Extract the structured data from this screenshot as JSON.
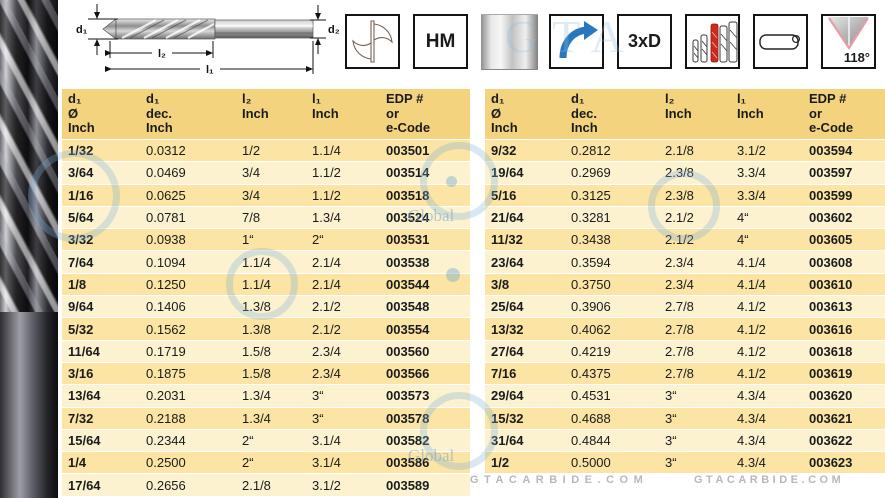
{
  "diagram": {
    "d1": "d₁",
    "d2": "d₂",
    "l2": "l₂",
    "l1": "l₁"
  },
  "icons": {
    "hm_label": "HM",
    "ratio_label": "3xD",
    "angle_label": "118°"
  },
  "table": {
    "headers": [
      "d₁\nØ\nInch",
      "d₁\ndec.\nInch",
      "l₂\nInch",
      "l₁\nInch",
      "EDP #\nor\ne-Code"
    ],
    "left_rows": [
      [
        "1/32",
        "0.0312",
        "1/2",
        "1.1/4",
        "003501"
      ],
      [
        "3/64",
        "0.0469",
        "3/4",
        "1.1/2",
        "003514"
      ],
      [
        "1/16",
        "0.0625",
        "3/4",
        "1.1/2",
        "003518"
      ],
      [
        "5/64",
        "0.0781",
        "7/8",
        "1.3/4",
        "003524"
      ],
      [
        "3/32",
        "0.0938",
        "1“",
        "2“",
        "003531"
      ],
      [
        "7/64",
        "0.1094",
        "1.1/4",
        "2.1/4",
        "003538"
      ],
      [
        "1/8",
        "0.1250",
        "1.1/4",
        "2.1/4",
        "003544"
      ],
      [
        "9/64",
        "0.1406",
        "1.3/8",
        "2.1/2",
        "003548"
      ],
      [
        "5/32",
        "0.1562",
        "1.3/8",
        "2.1/2",
        "003554"
      ],
      [
        "11/64",
        "0.1719",
        "1.5/8",
        "2.3/4",
        "003560"
      ],
      [
        "3/16",
        "0.1875",
        "1.5/8",
        "2.3/4",
        "003566"
      ],
      [
        "13/64",
        "0.2031",
        "1.3/4",
        "3“",
        "003573"
      ],
      [
        "7/32",
        "0.2188",
        "1.3/4",
        "3“",
        "003578"
      ],
      [
        "15/64",
        "0.2344",
        "2“",
        "3.1/4",
        "003582"
      ],
      [
        "1/4",
        "0.2500",
        "2“",
        "3.1/4",
        "003586"
      ],
      [
        "17/64",
        "0.2656",
        "2.1/8",
        "3.1/2",
        "003589"
      ]
    ],
    "right_rows": [
      [
        "9/32",
        "0.2812",
        "2.1/8",
        "3.1/2",
        "003594"
      ],
      [
        "19/64",
        "0.2969",
        "2.3/8",
        "3.3/4",
        "003597"
      ],
      [
        "5/16",
        "0.3125",
        "2.3/8",
        "3.3/4",
        "003599"
      ],
      [
        "21/64",
        "0.3281",
        "2.1/2",
        "4“",
        "003602"
      ],
      [
        "11/32",
        "0.3438",
        "2.1/2",
        "4“",
        "003605"
      ],
      [
        "23/64",
        "0.3594",
        "2.3/4",
        "4.1/4",
        "003608"
      ],
      [
        "3/8",
        "0.3750",
        "2.3/4",
        "4.1/4",
        "003610"
      ],
      [
        "25/64",
        "0.3906",
        "2.7/8",
        "4.1/2",
        "003613"
      ],
      [
        "13/32",
        "0.4062",
        "2.7/8",
        "4.1/2",
        "003616"
      ],
      [
        "27/64",
        "0.4219",
        "2.7/8",
        "4.1/2",
        "003618"
      ],
      [
        "7/16",
        "0.4375",
        "2.7/8",
        "4.1/2",
        "003619"
      ],
      [
        "29/64",
        "0.4531",
        "3“",
        "4.3/4",
        "003620"
      ],
      [
        "15/32",
        "0.4688",
        "3“",
        "4.3/4",
        "003621"
      ],
      [
        "31/64",
        "0.4844",
        "3“",
        "4.3/4",
        "003622"
      ],
      [
        "1/2",
        "0.5000",
        "3“",
        "4.3/4",
        "003623"
      ]
    ]
  },
  "watermarks": {
    "brand": "GTACARBIDE.COM",
    "global": "Global",
    "gta": "GTA"
  },
  "colors": {
    "header_bg": "#F4D37E",
    "row_odd_bg": "#FBE4A4",
    "row_even_bg": "#FCF2D0",
    "arrow_blue": "#2878BE",
    "highlight_red": "#CC2A1E"
  }
}
